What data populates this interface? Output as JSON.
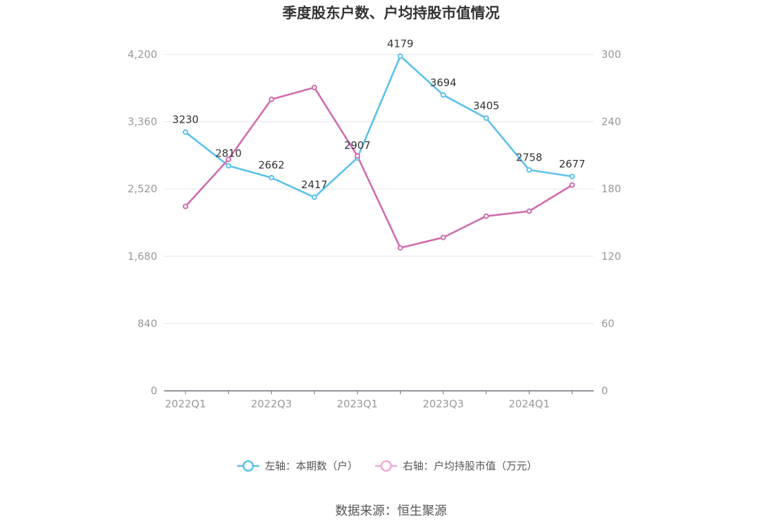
{
  "chart_data": {
    "type": "line",
    "title": "季度股东户数、户均持股市值情况",
    "categories": [
      "2022Q1",
      "2022Q2",
      "2022Q3",
      "2022Q4",
      "2023Q1",
      "2023Q2",
      "2023Q3",
      "2023Q4",
      "2024Q1",
      "2024Q2"
    ],
    "x_tick_labels": [
      "2022Q1",
      "2022Q3",
      "2023Q1",
      "2023Q3",
      "2024Q1"
    ],
    "y_left": {
      "ticks": [
        "0",
        "840",
        "1,680",
        "2,520",
        "3,360",
        "4,200"
      ],
      "min": 0,
      "max": 4200
    },
    "y_right": {
      "ticks": [
        "0",
        "60",
        "120",
        "180",
        "240",
        "300"
      ],
      "min": 0,
      "max": 300
    },
    "series": [
      {
        "name": "左轴：本期数（户）",
        "axis": "left",
        "color": "#5bc0eb",
        "values": [
          3230,
          2810,
          2662,
          2417,
          2907,
          4179,
          3694,
          3405,
          2758,
          2677
        ],
        "labels": [
          "3230",
          "2810",
          "2662",
          "2417",
          "2907",
          "4179",
          "3694",
          "3405",
          "2758",
          "2677"
        ]
      },
      {
        "name": "右轴：户均持股市值（万元）",
        "axis": "right",
        "color": "#d06aae",
        "values": [
          164.5,
          206.5,
          260.0,
          270.5,
          209.5,
          127.5,
          136.8,
          155.8,
          160.2,
          183.5
        ]
      }
    ],
    "grid": true,
    "legend_position": "bottom"
  },
  "source": "数据来源：恒生聚源"
}
